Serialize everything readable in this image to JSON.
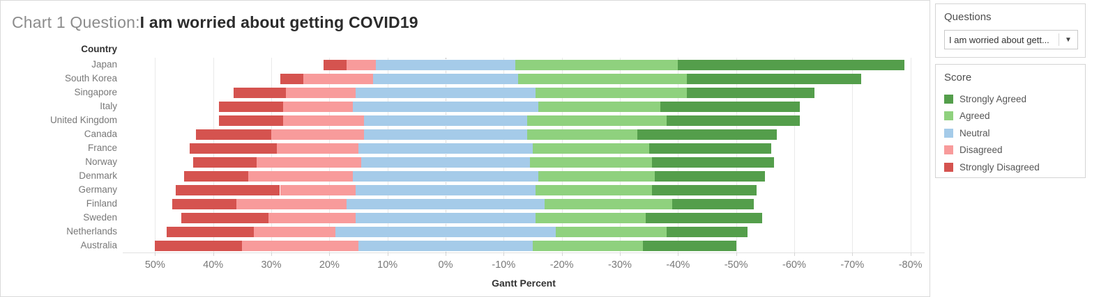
{
  "title": {
    "prefix": "Chart 1 Question:",
    "question": "I am worried about getting COVID19"
  },
  "sidebar": {
    "questions": {
      "title": "Questions",
      "selected": "I am worried about gett...",
      "arrow": "▼"
    },
    "score": {
      "title": "Score",
      "items": [
        {
          "label": "Strongly Agreed",
          "color": "#549e4b"
        },
        {
          "label": "Agreed",
          "color": "#8fd17e"
        },
        {
          "label": "Neutral",
          "color": "#a5cbe9"
        },
        {
          "label": "Disagreed",
          "color": "#f89b9b"
        },
        {
          "label": "Strongly Disagreed",
          "color": "#d5534f"
        }
      ]
    }
  },
  "chart_data": {
    "type": "bar",
    "subtype": "diverging-stacked-likert",
    "title": "Chart 1 Question: I am worried about getting COVID19",
    "column_header": "Country",
    "xlabel": "Gantt Percent",
    "x_ticks_percent": [
      50,
      40,
      30,
      20,
      10,
      0,
      -10,
      -20,
      -30,
      -40,
      -50,
      -60,
      -70,
      -80
    ],
    "x_axis_reversed": true,
    "x_range": [
      55.5,
      -82.5
    ],
    "grid": true,
    "legend_position": "right",
    "bar_start_rule": "bar left edge = strongly_disagreed + disagreed + neutral/2 (neutral centered on 0)",
    "categories": [
      "Japan",
      "South Korea",
      "Singapore",
      "Italy",
      "United Kingdom",
      "Canada",
      "France",
      "Norway",
      "Denmark",
      "Germany",
      "Finland",
      "Sweden",
      "Netherlands",
      "Australia"
    ],
    "series": [
      {
        "name": "Strongly Disagreed",
        "color": "#d5534f",
        "values": [
          4,
          4,
          9,
          11,
          11,
          13,
          15,
          11,
          11,
          18,
          11,
          15,
          15,
          15
        ]
      },
      {
        "name": "Disagreed",
        "color": "#f89b9b",
        "values": [
          5,
          12,
          12,
          12,
          14,
          16,
          14,
          18,
          18,
          13,
          19,
          15,
          14,
          20
        ]
      },
      {
        "name": "Neutral",
        "color": "#a5cbe9",
        "values": [
          24,
          25,
          31,
          32,
          28,
          28,
          30,
          29,
          32,
          31,
          34,
          31,
          38,
          30
        ]
      },
      {
        "name": "Agreed",
        "color": "#8fd17e",
        "values": [
          28,
          29,
          26,
          21,
          24,
          19,
          20,
          21,
          20,
          20,
          22,
          19,
          19,
          19
        ]
      },
      {
        "name": "Strongly Agreed",
        "color": "#549e4b",
        "values": [
          39,
          30,
          22,
          24,
          23,
          24,
          21,
          21,
          19,
          18,
          14,
          20,
          14,
          16
        ]
      }
    ]
  }
}
